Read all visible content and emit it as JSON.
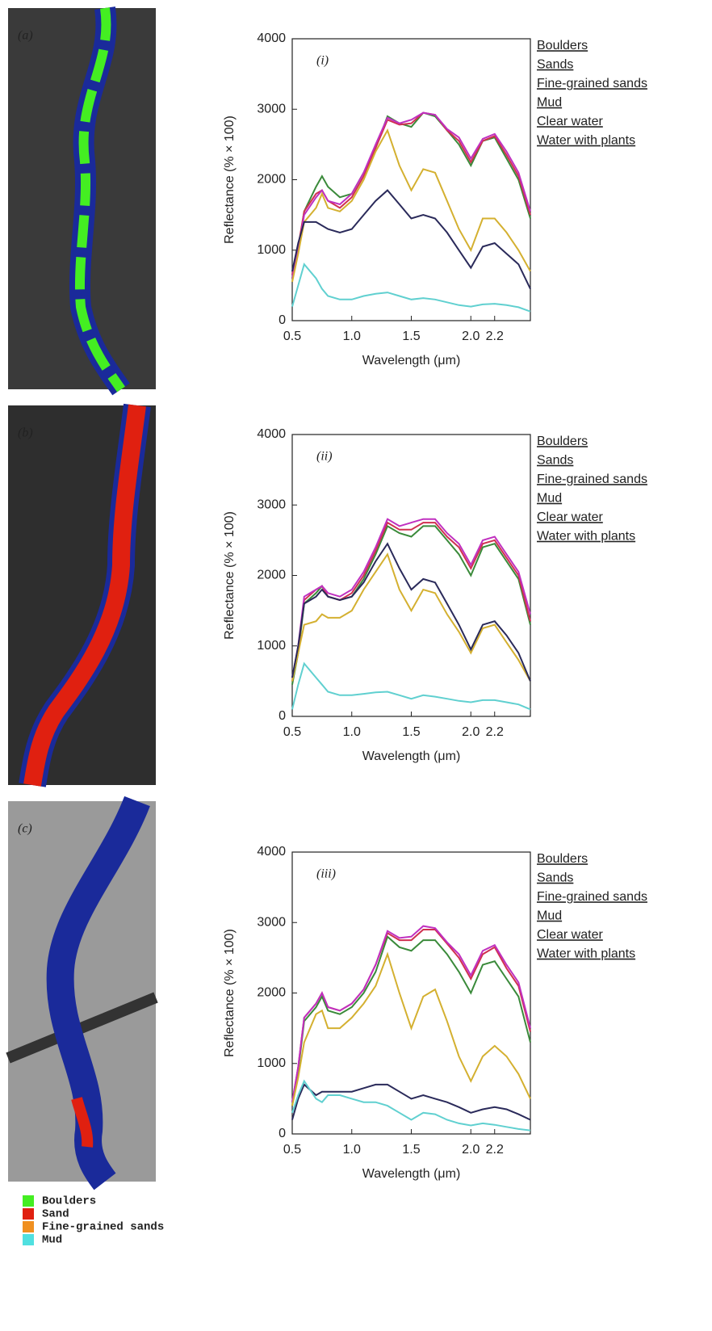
{
  "images": [
    {
      "label": "(a)"
    },
    {
      "label": "(b)"
    },
    {
      "label": "(c)"
    }
  ],
  "map_legend": [
    {
      "label": "Boulders",
      "color": "#44ee22"
    },
    {
      "label": "Sand",
      "color": "#e02010"
    },
    {
      "label": "Fine-grained sands",
      "color": "#f09020"
    },
    {
      "label": "Mud",
      "color": "#50e0e0"
    }
  ],
  "chart_data": [
    {
      "type": "line",
      "panel_label": "(i)",
      "x_label": "Wavelength (μm)",
      "y_label": "Reflectance (% × 100)",
      "x": [
        0.5,
        0.55,
        0.6,
        0.7,
        0.75,
        0.8,
        0.9,
        1.0,
        1.1,
        1.2,
        1.3,
        1.4,
        1.5,
        1.6,
        1.7,
        1.8,
        1.9,
        2.0,
        2.1,
        2.2,
        2.3,
        2.4,
        2.5
      ],
      "xlim": [
        0.5,
        2.5
      ],
      "xticks": [
        0.5,
        {
          "value": 1,
          "label": "1.0"
        },
        1.5,
        {
          "value": 2,
          "label": "2.0"
        },
        2.2
      ],
      "ylim": [
        0,
        4000
      ],
      "yticks": [
        0,
        1000,
        2000,
        3000,
        4000
      ],
      "series": [
        {
          "name": "Boulders",
          "color": "#3a8a3a",
          "values": [
            600,
            1000,
            1550,
            1900,
            2050,
            1900,
            1750,
            1800,
            2100,
            2450,
            2900,
            2800,
            2750,
            2950,
            2900,
            2700,
            2500,
            2200,
            2550,
            2600,
            2300,
            2000,
            1450
          ]
        },
        {
          "name": "Sands",
          "color": "#d03050",
          "values": [
            650,
            1050,
            1550,
            1800,
            1850,
            1700,
            1600,
            1750,
            2050,
            2450,
            2850,
            2780,
            2800,
            2950,
            2920,
            2700,
            2550,
            2250,
            2550,
            2620,
            2350,
            2050,
            1500
          ]
        },
        {
          "name": "Fine-grained sands",
          "color": "#c030c0",
          "values": [
            600,
            1000,
            1500,
            1750,
            1850,
            1700,
            1650,
            1800,
            2100,
            2500,
            2880,
            2800,
            2850,
            2950,
            2920,
            2720,
            2600,
            2300,
            2580,
            2650,
            2400,
            2100,
            1550
          ]
        },
        {
          "name": "Mud",
          "color": "#d4b030",
          "values": [
            550,
            950,
            1400,
            1600,
            1800,
            1600,
            1550,
            1700,
            2000,
            2400,
            2700,
            2200,
            1850,
            2150,
            2100,
            1700,
            1300,
            1000,
            1450,
            1450,
            1250,
            1000,
            700
          ]
        },
        {
          "name": "Clear water",
          "color": "#2a2a5a",
          "values": [
            700,
            1100,
            1400,
            1400,
            1350,
            1300,
            1250,
            1300,
            1500,
            1700,
            1850,
            1650,
            1450,
            1500,
            1450,
            1250,
            1000,
            750,
            1050,
            1100,
            950,
            800,
            450
          ]
        },
        {
          "name": "Water with plants",
          "color": "#60d0d0",
          "values": [
            200,
            500,
            800,
            600,
            450,
            350,
            300,
            300,
            350,
            380,
            400,
            350,
            300,
            320,
            300,
            260,
            220,
            200,
            230,
            240,
            220,
            190,
            130
          ]
        }
      ]
    },
    {
      "type": "line",
      "panel_label": "(ii)",
      "x_label": "Wavelength (μm)",
      "y_label": "Reflectance (% × 100)",
      "x": [
        0.5,
        0.55,
        0.6,
        0.7,
        0.75,
        0.8,
        0.9,
        1.0,
        1.1,
        1.2,
        1.3,
        1.4,
        1.5,
        1.6,
        1.7,
        1.8,
        1.9,
        2.0,
        2.1,
        2.2,
        2.3,
        2.4,
        2.5
      ],
      "xlim": [
        0.5,
        2.5
      ],
      "xticks": [
        0.5,
        {
          "value": 1,
          "label": "1.0"
        },
        1.5,
        {
          "value": 2,
          "label": "2.0"
        },
        2.2
      ],
      "ylim": [
        0,
        4000
      ],
      "yticks": [
        0,
        1000,
        2000,
        3000,
        4000
      ],
      "series": [
        {
          "name": "Boulders",
          "color": "#3a8a3a",
          "values": [
            450,
            900,
            1600,
            1750,
            1850,
            1700,
            1650,
            1700,
            1950,
            2300,
            2700,
            2600,
            2550,
            2700,
            2700,
            2500,
            2300,
            2000,
            2400,
            2450,
            2200,
            1950,
            1300
          ]
        },
        {
          "name": "Sands",
          "color": "#d03050",
          "values": [
            500,
            950,
            1650,
            1800,
            1850,
            1700,
            1650,
            1750,
            2000,
            2350,
            2750,
            2650,
            2650,
            2750,
            2750,
            2550,
            2400,
            2100,
            2450,
            2500,
            2250,
            2000,
            1350
          ]
        },
        {
          "name": "Fine-grained sands",
          "color": "#c030c0",
          "values": [
            550,
            1000,
            1700,
            1800,
            1850,
            1750,
            1700,
            1800,
            2050,
            2400,
            2800,
            2700,
            2750,
            2800,
            2800,
            2600,
            2450,
            2150,
            2500,
            2550,
            2300,
            2050,
            1450
          ]
        },
        {
          "name": "Mud",
          "color": "#d4b030",
          "values": [
            500,
            900,
            1300,
            1350,
            1450,
            1400,
            1400,
            1500,
            1800,
            2050,
            2300,
            1800,
            1500,
            1800,
            1750,
            1450,
            1200,
            900,
            1250,
            1300,
            1050,
            800,
            500
          ]
        },
        {
          "name": "Clear water",
          "color": "#2a2a5a",
          "values": [
            550,
            1000,
            1600,
            1700,
            1800,
            1700,
            1650,
            1700,
            1900,
            2200,
            2450,
            2100,
            1800,
            1950,
            1900,
            1600,
            1300,
            950,
            1300,
            1350,
            1150,
            900,
            500
          ]
        },
        {
          "name": "Water with plants",
          "color": "#60d0d0",
          "values": [
            100,
            450,
            750,
            550,
            450,
            350,
            300,
            300,
            320,
            340,
            350,
            300,
            250,
            300,
            280,
            250,
            220,
            200,
            230,
            230,
            200,
            170,
            100
          ]
        }
      ]
    },
    {
      "type": "line",
      "panel_label": "(iii)",
      "x_label": "Wavelength (μm)",
      "y_label": "Reflectance (% × 100)",
      "x": [
        0.5,
        0.55,
        0.6,
        0.7,
        0.75,
        0.8,
        0.9,
        1.0,
        1.1,
        1.2,
        1.3,
        1.4,
        1.5,
        1.6,
        1.7,
        1.8,
        1.9,
        2.0,
        2.1,
        2.2,
        2.3,
        2.4,
        2.5
      ],
      "xlim": [
        0.5,
        2.5
      ],
      "xticks": [
        0.5,
        {
          "value": 1,
          "label": "1.0"
        },
        1.5,
        {
          "value": 2,
          "label": "2.0"
        },
        2.2
      ],
      "ylim": [
        0,
        4000
      ],
      "yticks": [
        0,
        1000,
        2000,
        3000,
        4000
      ],
      "series": [
        {
          "name": "Boulders",
          "color": "#3a8a3a",
          "values": [
            400,
            900,
            1600,
            1800,
            1950,
            1750,
            1700,
            1800,
            2000,
            2300,
            2800,
            2650,
            2600,
            2750,
            2750,
            2550,
            2300,
            2000,
            2400,
            2450,
            2200,
            1950,
            1300
          ]
        },
        {
          "name": "Sands",
          "color": "#d03050",
          "values": [
            450,
            950,
            1650,
            1850,
            2000,
            1800,
            1750,
            1850,
            2050,
            2400,
            2850,
            2750,
            2750,
            2900,
            2900,
            2700,
            2500,
            2200,
            2550,
            2650,
            2350,
            2100,
            1450
          ]
        },
        {
          "name": "Fine-grained sands",
          "color": "#c030c0",
          "values": [
            450,
            950,
            1650,
            1850,
            2000,
            1800,
            1750,
            1850,
            2050,
            2400,
            2880,
            2780,
            2800,
            2950,
            2920,
            2720,
            2550,
            2250,
            2600,
            2680,
            2400,
            2150,
            1500
          ]
        },
        {
          "name": "Mud",
          "color": "#d4b030",
          "values": [
            400,
            800,
            1300,
            1700,
            1750,
            1500,
            1500,
            1650,
            1850,
            2100,
            2550,
            2000,
            1500,
            1950,
            2050,
            1600,
            1100,
            750,
            1100,
            1250,
            1100,
            850,
            500
          ]
        },
        {
          "name": "Clear water",
          "color": "#2a2a5a",
          "values": [
            200,
            500,
            700,
            550,
            600,
            600,
            600,
            600,
            650,
            700,
            700,
            600,
            500,
            550,
            500,
            450,
            380,
            300,
            350,
            380,
            350,
            280,
            200
          ]
        },
        {
          "name": "Water with plants",
          "color": "#60d0d0",
          "values": [
            300,
            550,
            750,
            500,
            450,
            550,
            550,
            500,
            450,
            450,
            400,
            300,
            200,
            300,
            280,
            200,
            150,
            120,
            150,
            130,
            100,
            70,
            50
          ]
        }
      ]
    }
  ]
}
